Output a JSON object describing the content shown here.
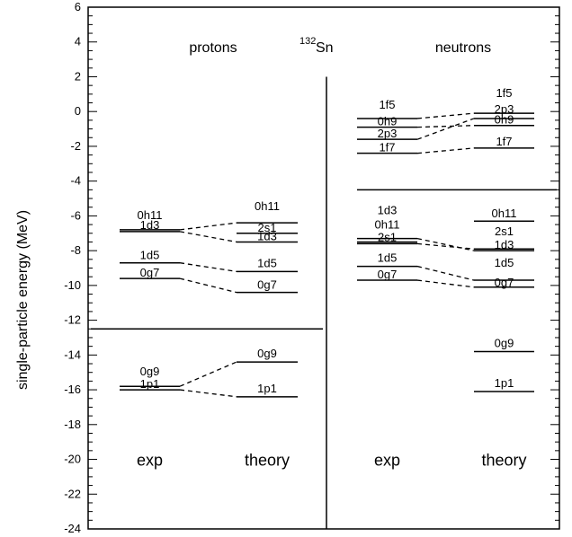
{
  "chart_data": {
    "type": "level-scheme",
    "ylabel": "single-particle energy (MeV)",
    "ylim": [
      -24,
      6
    ],
    "ytick_step": 2,
    "minor_step": 0.5,
    "yticks": [
      6,
      4,
      2,
      0,
      -2,
      -4,
      -6,
      -8,
      -10,
      -12,
      -14,
      -16,
      -18,
      -20,
      -22,
      -24
    ],
    "nucleus": {
      "mass_number": "132",
      "symbol": "Sn"
    },
    "groups": [
      {
        "id": "protons",
        "title": "protons",
        "columns": [
          {
            "id": "p-exp",
            "label": "exp",
            "levels": [
              {
                "name": "0h11",
                "energy": -6.8
              },
              {
                "name": "1d3",
                "energy": -6.9
              },
              {
                "name": "1d5",
                "energy": -8.7
              },
              {
                "name": "0g7",
                "energy": -9.6
              },
              {
                "name": "0g9",
                "energy": -15.8
              },
              {
                "name": "1p1",
                "energy": -16.0
              }
            ]
          },
          {
            "id": "p-theory",
            "label": "theory",
            "levels": [
              {
                "name": "0h11",
                "energy": -6.4
              },
              {
                "name": "2s1",
                "energy": -7.0
              },
              {
                "name": "1d3",
                "energy": -7.5
              },
              {
                "name": "1d5",
                "energy": -9.2
              },
              {
                "name": "0g7",
                "energy": -10.4
              },
              {
                "name": "0g9",
                "energy": -14.4
              },
              {
                "name": "1p1",
                "energy": -16.4
              }
            ]
          }
        ],
        "gap_line": -12.5
      },
      {
        "id": "neutrons",
        "title": "neutrons",
        "columns": [
          {
            "id": "n-exp",
            "label": "exp",
            "levels": [
              {
                "name": "1f5",
                "energy": -0.4
              },
              {
                "name": "0h9",
                "energy": -0.9
              },
              {
                "name": "2p3",
                "energy": -1.6
              },
              {
                "name": "1f7",
                "energy": -2.4
              },
              {
                "name": "1d3",
                "energy": -7.3
              },
              {
                "name": "0h11",
                "energy": -7.5
              },
              {
                "name": "2s1",
                "energy": -7.6
              },
              {
                "name": "1d5",
                "energy": -8.9
              },
              {
                "name": "0g7",
                "energy": -9.7
              }
            ]
          },
          {
            "id": "n-theory",
            "label": "theory",
            "levels": [
              {
                "name": "1f5",
                "energy": -0.1
              },
              {
                "name": "2p3",
                "energy": -0.4
              },
              {
                "name": "0h9",
                "energy": -0.8
              },
              {
                "name": "1f7",
                "energy": -2.1
              },
              {
                "name": "0h11",
                "energy": -6.3
              },
              {
                "name": "2s1",
                "energy": -7.9
              },
              {
                "name": "1d3",
                "energy": -8.0
              },
              {
                "name": "1d5",
                "energy": -9.7
              },
              {
                "name": "0g7",
                "energy": -10.1
              },
              {
                "name": "0g9",
                "energy": -13.8
              },
              {
                "name": "1p1",
                "energy": -16.1
              }
            ]
          }
        ],
        "gap_line": -4.5
      }
    ],
    "connections": [
      {
        "group": "protons",
        "level": "0h11"
      },
      {
        "group": "protons",
        "level": "1d3"
      },
      {
        "group": "protons",
        "level": "1d5"
      },
      {
        "group": "protons",
        "level": "0g7"
      },
      {
        "group": "protons",
        "level": "0g9"
      },
      {
        "group": "protons",
        "level": "1p1"
      },
      {
        "group": "neutrons",
        "level": "1f5"
      },
      {
        "group": "neutrons",
        "level": "0h9"
      },
      {
        "group": "neutrons",
        "level": "2p3"
      },
      {
        "group": "neutrons",
        "level": "1f7"
      },
      {
        "group": "neutrons",
        "level": "2s1"
      },
      {
        "group": "neutrons",
        "level": "1d3"
      },
      {
        "group": "neutrons",
        "level": "1d5"
      },
      {
        "group": "neutrons",
        "level": "0g7"
      }
    ]
  }
}
